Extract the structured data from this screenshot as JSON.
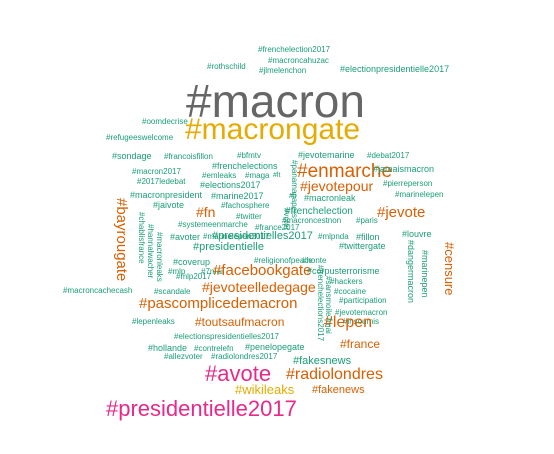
{
  "colors": {
    "teal": "#1b9e77",
    "orange": "#d95f02",
    "gold": "#e6ab02",
    "gray": "#666666",
    "pink": "#e7298a"
  },
  "words": [
    {
      "text": "#frenchelection2017",
      "color": "teal"
    },
    {
      "text": "#macroncahuzac",
      "color": "teal"
    },
    {
      "text": "#rothschild",
      "color": "teal"
    },
    {
      "text": "#jlmelenchon",
      "color": "teal"
    },
    {
      "text": "#electionpresidentielle2017",
      "color": "teal"
    },
    {
      "text": "#macron",
      "color": "gray"
    },
    {
      "text": "#macrongate",
      "color": "gold"
    },
    {
      "text": "#oomdecrise",
      "color": "teal"
    },
    {
      "text": "#refugeeswelcome",
      "color": "teal"
    },
    {
      "text": "#sondage",
      "color": "teal"
    },
    {
      "text": "#francoisfillon",
      "color": "teal"
    },
    {
      "text": "#bfmtv",
      "color": "teal"
    },
    {
      "text": "#frenchelections",
      "color": "teal"
    },
    {
      "text": "#jevotemarine",
      "color": "teal"
    },
    {
      "text": "#debat2017",
      "color": "teal"
    },
    {
      "text": "#macron2017",
      "color": "teal"
    },
    {
      "text": "#emleaks",
      "color": "teal"
    },
    {
      "text": "#maga",
      "color": "teal"
    },
    {
      "text": "#enmarche",
      "color": "orange"
    },
    {
      "text": "#jamaismacron",
      "color": "teal"
    },
    {
      "text": "#2017ledebat",
      "color": "teal"
    },
    {
      "text": "#elections2017",
      "color": "teal"
    },
    {
      "text": "#jevotepour",
      "color": "orange"
    },
    {
      "text": "#pierreperson",
      "color": "teal"
    },
    {
      "text": "#macronpresident",
      "color": "teal"
    },
    {
      "text": "#marine2017",
      "color": "teal"
    },
    {
      "text": "#macronleak",
      "color": "teal"
    },
    {
      "text": "#marinelepen",
      "color": "teal"
    },
    {
      "text": "#jaivote",
      "color": "teal"
    },
    {
      "text": "#fachosphere",
      "color": "teal"
    },
    {
      "text": "#frenchelection",
      "color": "teal"
    },
    {
      "text": "#fn",
      "color": "orange"
    },
    {
      "text": "#twitter",
      "color": "teal"
    },
    {
      "text": "#jevote",
      "color": "orange"
    },
    {
      "text": "#systemeenmarche",
      "color": "teal"
    },
    {
      "text": "#macroncestnon",
      "color": "teal"
    },
    {
      "text": "#paris",
      "color": "teal"
    },
    {
      "text": "#france2017",
      "color": "teal"
    },
    {
      "text": "#bayrougate",
      "color": "orange"
    },
    {
      "text": "#avoter",
      "color": "teal"
    },
    {
      "text": "#presidentielles2017",
      "color": "teal"
    },
    {
      "text": "#mlpnda",
      "color": "teal"
    },
    {
      "text": "#fillon",
      "color": "teal"
    },
    {
      "text": "#louvre",
      "color": "teal"
    },
    {
      "text": "#presidentielle",
      "color": "teal"
    },
    {
      "text": "#twittergate",
      "color": "teal"
    },
    {
      "text": "#coverup",
      "color": "teal"
    },
    {
      "text": "#religionofpeace",
      "color": "teal"
    },
    {
      "text": "#honte",
      "color": "teal"
    },
    {
      "text": "#censure",
      "color": "orange"
    },
    {
      "text": "#mlp",
      "color": "teal"
    },
    {
      "text": "#7mai",
      "color": "teal"
    },
    {
      "text": "#facebookgate",
      "color": "orange"
    },
    {
      "text": "#mlp2017",
      "color": "teal"
    },
    {
      "text": "#corpusterrorisme",
      "color": "teal"
    },
    {
      "text": "#jevoteelledegage",
      "color": "orange"
    },
    {
      "text": "#scandale",
      "color": "teal"
    },
    {
      "text": "#hackers",
      "color": "teal"
    },
    {
      "text": "#cocaine",
      "color": "teal"
    },
    {
      "text": "#participation",
      "color": "teal"
    },
    {
      "text": "#macroncachecash",
      "color": "teal"
    },
    {
      "text": "#pascomplicedemacron",
      "color": "orange"
    },
    {
      "text": "#jevotemacron",
      "color": "teal"
    },
    {
      "text": "#insoumis",
      "color": "teal"
    },
    {
      "text": "#lepenleaks",
      "color": "teal"
    },
    {
      "text": "#toutsaufmacron",
      "color": "orange"
    },
    {
      "text": "#lepen",
      "color": "orange"
    },
    {
      "text": "#electionspresidentielles2017",
      "color": "teal"
    },
    {
      "text": "#france",
      "color": "orange"
    },
    {
      "text": "#hollande",
      "color": "teal"
    },
    {
      "text": "#contrelefn",
      "color": "teal"
    },
    {
      "text": "#penelopegate",
      "color": "teal"
    },
    {
      "text": "#allezvoter",
      "color": "teal"
    },
    {
      "text": "#radiolondres2017",
      "color": "teal"
    },
    {
      "text": "#fakesnews",
      "color": "teal"
    },
    {
      "text": "#avote",
      "color": "pink"
    },
    {
      "text": "#radiolondres",
      "color": "orange"
    },
    {
      "text": "#wikileaks",
      "color": "gold"
    },
    {
      "text": "#fakenews",
      "color": "orange"
    },
    {
      "text": "#presidentielle2017",
      "color": "pink"
    },
    {
      "text": "#fb",
      "color": "teal"
    },
    {
      "text": "#lt",
      "color": "teal"
    },
    {
      "text": "#fi",
      "color": "teal"
    },
    {
      "text": "#marinelepen2017",
      "color": "teal"
    },
    {
      "text": "#chablisfrance",
      "color": "teal"
    },
    {
      "text": "#hannalwacher",
      "color": "teal"
    },
    {
      "text": "#macronleaks",
      "color": "teal"
    },
    {
      "text": "#panamapapers",
      "color": "teal"
    },
    {
      "text": "#voter",
      "color": "teal"
    },
    {
      "text": "#sansmoile7mai",
      "color": "teal"
    },
    {
      "text": "#frenchelections2017",
      "color": "teal"
    },
    {
      "text": "#dangermacron",
      "color": "teal"
    },
    {
      "text": "#marinepen",
      "color": "teal"
    }
  ]
}
